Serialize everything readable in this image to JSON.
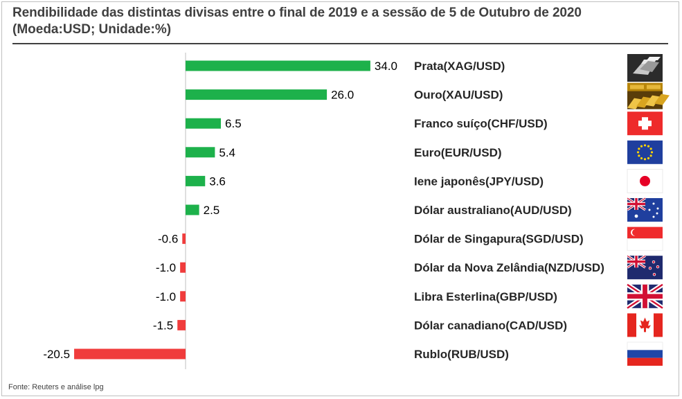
{
  "title": "Rendibilidade das distintas divisas entre o final de 2019 e a sessão de 5 de Outubro de 2020",
  "subtitle": "(Moeda:USD; Unidade:%)",
  "source": "Fonte: Reuters e análise lpg",
  "colors": {
    "positive": "#1db14b",
    "negative": "#f03c3c",
    "axis": "#bfbfbf"
  },
  "chart_data": {
    "type": "bar",
    "orientation": "horizontal",
    "title": "Rendibilidade das distintas divisas entre o final de 2019 e a sessão de 5 de Outubro de 2020",
    "subtitle": "(Moeda:USD; Unidade:%)",
    "categories": [
      "Prata(XAG/USD)",
      "Ouro(XAU/USD)",
      "Franco suíço(CHF/USD)",
      "Euro(EUR/USD)",
      "Iene japonês(JPY/USD)",
      "Dólar australiano(AUD/USD)",
      "Dólar de Singapura(SGD/USD)",
      "Dólar da Nova Zelândia(NZD/USD)",
      "Libra Esterlina(GBP/USD)",
      "Dólar canadiano(CAD/USD)",
      "Rublo(RUB/USD)"
    ],
    "values": [
      34.0,
      26.0,
      6.5,
      5.4,
      3.6,
      2.5,
      -0.6,
      -1.0,
      -1.0,
      -1.5,
      -20.5
    ],
    "value_labels": [
      "34.0",
      "26.0",
      "6.5",
      "5.4",
      "3.6",
      "2.5",
      "-0.6",
      "-1.0",
      "-1.0",
      "-1.5",
      "-20.5"
    ],
    "icons": [
      "silver-bars-icon",
      "gold-bars-icon",
      "flag-switzerland-icon",
      "flag-eu-icon",
      "flag-japan-icon",
      "flag-australia-icon",
      "flag-singapore-icon",
      "flag-new-zealand-icon",
      "flag-uk-icon",
      "flag-canada-icon",
      "flag-russia-icon"
    ],
    "xlim": [
      -20.5,
      34.0
    ],
    "grid": false,
    "legend": "none"
  }
}
